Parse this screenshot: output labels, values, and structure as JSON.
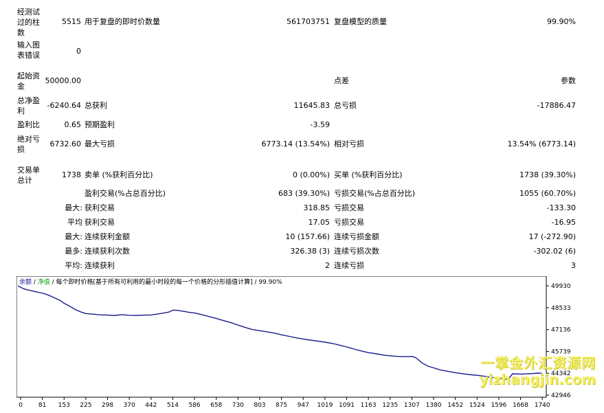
{
  "report": {
    "r1": {
      "label": "经测试过的柱数",
      "value": "5515",
      "label2": "用于复盘的即时价数量",
      "value2": "561703751",
      "label3": "复盘模型的质量",
      "value3": "99.90%"
    },
    "r2": {
      "label": "输入图表错误",
      "value": "0"
    },
    "r3": {
      "label": "起始资金",
      "value": "50000.00",
      "label3": "点差",
      "value3": "参数"
    },
    "r4": {
      "label": "总净盈利",
      "value": "-6240.64",
      "label2": "总获利",
      "value2": "11645.83",
      "label3": "总亏损",
      "value3": "-17886.47"
    },
    "r5": {
      "label": "盈利比",
      "value": "0.65",
      "label2": "预期盈利",
      "value2": "-3.59"
    },
    "r6": {
      "label": "绝对亏损",
      "value": "6732.60",
      "label2": "最大亏损",
      "value2": "6773.14 (13.54%)",
      "label3": "相对亏损",
      "value3": "13.54% (6773.14)"
    },
    "r7": {
      "label": "交易单总计",
      "value": "1738",
      "label2": "卖单 (%获利百分比)",
      "value2": "0 (0.00%)",
      "label3": "买单 (%获利百分比)",
      "value3": "1738 (39.30%)"
    },
    "r8": {
      "label2": "盈利交易(%占总百分比)",
      "value2": "683 (39.30%)",
      "label3": "亏损交易(%占总百分比)",
      "value3": "1055 (60.70%)"
    },
    "r9": {
      "prefix": "最大:",
      "label2": "获利交易",
      "value2": "318.85",
      "label3": "亏损交易",
      "value3": "-133.30"
    },
    "r10": {
      "prefix": "平均",
      "label2": "获利交易",
      "value2": "17.05",
      "label3": "亏损交易",
      "value3": "-16.95"
    },
    "r11": {
      "prefix": "最大:",
      "label2": "连续获利金额",
      "value2": "10 (157.66)",
      "label3": "连续亏损金额",
      "value3": "17 (-272.90)"
    },
    "r12": {
      "prefix": "最多:",
      "label2": "连续获利次数",
      "value2": "326.38 (3)",
      "label3": "连续亏损次数",
      "value3": "-302.02 (6)"
    },
    "r13": {
      "prefix": "平均:",
      "label2": "连续获利",
      "value2": "2",
      "label3": "连续亏损",
      "value3": "3"
    }
  },
  "chart": {
    "legend_balance": "余额",
    "legend_sep1": " / ",
    "legend_equity": "净值",
    "legend_rest": " / 每个即时价格[基于所有可利用的最小时段的每一个价格的分形插值计算] / 99.90%",
    "y_ticks": [
      "49930",
      "48533",
      "47136",
      "45739",
      "44342",
      "42946"
    ],
    "x_ticks": [
      "0",
      "81",
      "153",
      "225",
      "298",
      "370",
      "442",
      "514",
      "586",
      "658",
      "730",
      "803",
      "875",
      "947",
      "1019",
      "1091",
      "1163",
      "1235",
      "1307",
      "1380",
      "1452",
      "1524",
      "1596",
      "1668",
      "1740"
    ],
    "line_color": "#1a1a8c",
    "ylim": [
      42946,
      49930
    ],
    "xlim": [
      0,
      1738
    ],
    "points": [
      [
        0,
        49930
      ],
      [
        15,
        49780
      ],
      [
        30,
        49680
      ],
      [
        45,
        49620
      ],
      [
        60,
        49550
      ],
      [
        81,
        49470
      ],
      [
        100,
        49350
      ],
      [
        120,
        49180
      ],
      [
        140,
        49000
      ],
      [
        153,
        48820
      ],
      [
        170,
        48650
      ],
      [
        190,
        48420
      ],
      [
        210,
        48250
      ],
      [
        225,
        48160
      ],
      [
        250,
        48120
      ],
      [
        270,
        48080
      ],
      [
        298,
        48060
      ],
      [
        320,
        48040
      ],
      [
        345,
        48090
      ],
      [
        370,
        48050
      ],
      [
        395,
        48040
      ],
      [
        420,
        48060
      ],
      [
        442,
        48070
      ],
      [
        460,
        48120
      ],
      [
        480,
        48180
      ],
      [
        500,
        48250
      ],
      [
        514,
        48380
      ],
      [
        530,
        48360
      ],
      [
        550,
        48300
      ],
      [
        570,
        48230
      ],
      [
        586,
        48200
      ],
      [
        610,
        48090
      ],
      [
        635,
        47960
      ],
      [
        658,
        47850
      ],
      [
        680,
        47720
      ],
      [
        705,
        47590
      ],
      [
        730,
        47420
      ],
      [
        750,
        47300
      ],
      [
        775,
        47150
      ],
      [
        803,
        47060
      ],
      [
        830,
        46980
      ],
      [
        855,
        46890
      ],
      [
        875,
        46800
      ],
      [
        900,
        46700
      ],
      [
        925,
        46600
      ],
      [
        947,
        46530
      ],
      [
        970,
        46460
      ],
      [
        995,
        46400
      ],
      [
        1019,
        46330
      ],
      [
        1045,
        46240
      ],
      [
        1070,
        46120
      ],
      [
        1091,
        46020
      ],
      [
        1115,
        45890
      ],
      [
        1140,
        45760
      ],
      [
        1163,
        45660
      ],
      [
        1190,
        45580
      ],
      [
        1215,
        45500
      ],
      [
        1235,
        45460
      ],
      [
        1260,
        45420
      ],
      [
        1285,
        45410
      ],
      [
        1307,
        45420
      ],
      [
        1320,
        45330
      ],
      [
        1340,
        45000
      ],
      [
        1360,
        44790
      ],
      [
        1380,
        44680
      ],
      [
        1400,
        44560
      ],
      [
        1425,
        44470
      ],
      [
        1452,
        44380
      ],
      [
        1480,
        44300
      ],
      [
        1505,
        44240
      ],
      [
        1524,
        44210
      ],
      [
        1545,
        44160
      ],
      [
        1570,
        44080
      ],
      [
        1596,
        44040
      ],
      [
        1610,
        43980
      ],
      [
        1625,
        43950
      ],
      [
        1640,
        44310
      ],
      [
        1668,
        44290
      ],
      [
        1690,
        44310
      ],
      [
        1710,
        44330
      ],
      [
        1725,
        44350
      ],
      [
        1738,
        44340
      ]
    ]
  }
}
